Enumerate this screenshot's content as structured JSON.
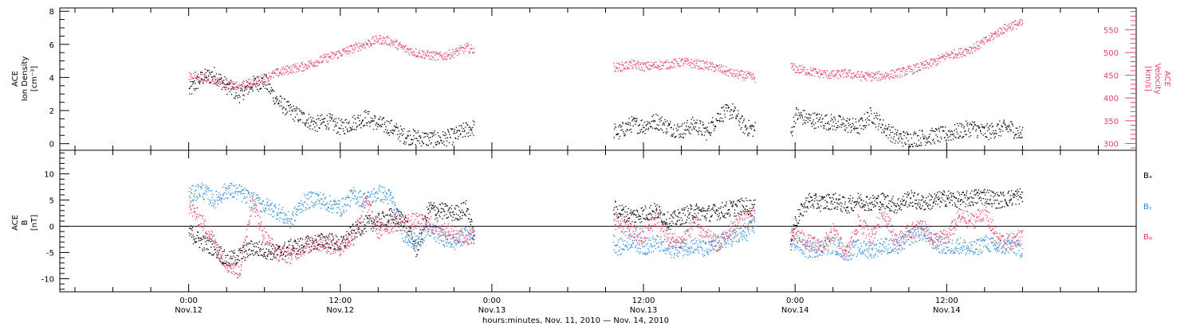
{
  "chart_data": [
    {
      "type": "scatter",
      "panel": "top",
      "left_ylabel_lines": [
        "ACE",
        "Ion Density",
        "[cm⁻³]"
      ],
      "right_ylabel_lines": [
        "ACE",
        "Velocity",
        "[km/s]"
      ],
      "left_ylim": [
        -0.4,
        8.2
      ],
      "right_ylim": [
        285,
        598
      ],
      "left_yticks": [
        "0",
        "2",
        "4",
        "6",
        "8"
      ],
      "right_yticks": [
        "300",
        "350",
        "400",
        "450",
        "500",
        "550"
      ],
      "grid": false,
      "series": [
        {
          "name": "Ion Density",
          "axis": "left",
          "color": "#000000",
          "gaps": [
            [
              22.6,
              33.6
            ],
            [
              44.8,
              47.6
            ]
          ],
          "x": [
            0,
            1,
            2,
            3,
            4,
            5,
            6,
            7,
            8,
            9,
            10,
            11,
            12,
            13,
            14,
            15,
            16,
            17,
            18,
            19,
            20,
            21,
            22,
            22.6,
            33.6,
            34,
            35,
            36,
            37,
            38,
            39,
            40,
            41,
            42,
            43,
            44,
            44.8,
            47.6,
            48,
            49,
            50,
            51,
            52,
            53,
            54,
            55,
            56,
            57,
            58,
            59,
            60,
            61,
            62,
            63,
            64,
            65,
            66
          ],
          "y": [
            3.2,
            4.0,
            4.2,
            3.5,
            3.0,
            3.6,
            3.8,
            2.6,
            2.0,
            1.6,
            1.2,
            1.4,
            1.0,
            1.3,
            1.6,
            1.2,
            1.0,
            0.5,
            0.4,
            0.3,
            0.3,
            0.5,
            0.9,
            1.0,
            0.8,
            0.7,
            1.2,
            1.1,
            1.4,
            1.0,
            0.8,
            1.2,
            0.7,
            1.8,
            2.0,
            1.0,
            0.9,
            0.5,
            1.8,
            1.5,
            1.4,
            1.3,
            1.2,
            1.0,
            1.8,
            1.0,
            0.4,
            0.3,
            0.4,
            0.5,
            0.6,
            0.8,
            1.0,
            0.7,
            0.9,
            1.0,
            0.5
          ]
        },
        {
          "name": "Velocity",
          "axis": "right",
          "color": "#e8426c",
          "gaps": [
            [
              22.6,
              33.6
            ],
            [
              44.8,
              47.6
            ]
          ],
          "x": [
            0,
            1,
            2,
            3,
            4,
            5,
            6,
            7,
            8,
            9,
            10,
            11,
            12,
            13,
            14,
            15,
            16,
            17,
            18,
            19,
            20,
            21,
            22,
            22.6,
            33.6,
            34,
            35,
            36,
            37,
            38,
            39,
            40,
            41,
            42,
            43,
            44,
            44.8,
            47.6,
            48,
            49,
            50,
            51,
            52,
            53,
            54,
            55,
            56,
            57,
            58,
            59,
            60,
            61,
            62,
            63,
            64,
            65,
            66
          ],
          "y": [
            452,
            445,
            440,
            430,
            425,
            436,
            445,
            456,
            465,
            470,
            480,
            490,
            500,
            510,
            520,
            530,
            525,
            510,
            500,
            495,
            492,
            500,
            512,
            505,
            470,
            468,
            475,
            470,
            472,
            475,
            480,
            476,
            472,
            465,
            455,
            450,
            445,
            470,
            465,
            460,
            455,
            452,
            455,
            450,
            448,
            450,
            455,
            462,
            470,
            480,
            495,
            500,
            510,
            525,
            545,
            560,
            565
          ]
        }
      ]
    },
    {
      "type": "scatter",
      "panel": "bottom",
      "ylabel_lines": [
        "ACE",
        "B",
        "[nT]"
      ],
      "ylim": [
        -12.5,
        14.5
      ],
      "yticks": [
        "-10",
        "-5",
        "0",
        "5",
        "10"
      ],
      "grid": false,
      "zero_line": true,
      "series": [
        {
          "name": "Bx",
          "color": "#000000",
          "gaps": [
            [
              22.6,
              33.6
            ],
            [
              44.8,
              47.6
            ]
          ],
          "x": [
            0,
            1,
            2,
            3,
            4,
            5,
            6,
            7,
            8,
            9,
            10,
            11,
            12,
            13,
            14,
            15,
            16,
            17,
            18,
            19,
            20,
            21,
            22,
            22.6,
            33.6,
            34,
            35,
            36,
            37,
            38,
            39,
            40,
            41,
            42,
            43,
            44,
            44.8,
            47.6,
            48,
            49,
            50,
            51,
            52,
            53,
            54,
            55,
            56,
            57,
            58,
            59,
            60,
            61,
            62,
            63,
            64,
            65,
            66
          ],
          "y": [
            -1.0,
            -3.0,
            -4.0,
            -6.5,
            -5.5,
            -4.0,
            -4.5,
            -5.0,
            -4.0,
            -3.5,
            -3.0,
            -2.5,
            -3.5,
            -1.0,
            0.5,
            1.0,
            2.0,
            1.5,
            -4.5,
            3.5,
            3.0,
            2.5,
            3.5,
            -2.5,
            3.5,
            3.0,
            2.0,
            2.5,
            3.0,
            1.0,
            2.0,
            3.0,
            2.5,
            3.0,
            3.5,
            4.0,
            3.5,
            -2.0,
            1.0,
            5.0,
            4.5,
            5.0,
            4.0,
            5.0,
            4.5,
            5.0,
            4.0,
            5.5,
            4.5,
            5.0,
            5.5,
            5.0,
            5.5,
            6.0,
            5.0,
            5.5,
            6.0
          ]
        },
        {
          "name": "By",
          "color": "#2a8be0",
          "gaps": [
            [
              22.6,
              33.6
            ],
            [
              44.8,
              47.6
            ]
          ],
          "x": [
            0,
            1,
            2,
            3,
            4,
            5,
            6,
            7,
            8,
            9,
            10,
            11,
            12,
            13,
            14,
            15,
            16,
            17,
            18,
            19,
            20,
            21,
            22,
            22.6,
            33.6,
            34,
            35,
            36,
            37,
            38,
            39,
            40,
            41,
            42,
            43,
            44,
            44.8,
            47.6,
            48,
            49,
            50,
            51,
            52,
            53,
            54,
            55,
            56,
            57,
            58,
            59,
            60,
            61,
            62,
            63,
            64,
            65,
            66
          ],
          "y": [
            6.0,
            7.0,
            5.0,
            7.0,
            6.5,
            5.0,
            4.0,
            3.0,
            1.0,
            4.5,
            5.5,
            4.5,
            3.5,
            6.0,
            5.0,
            6.5,
            5.5,
            -1.5,
            -3.0,
            -0.5,
            -2.0,
            -3.0,
            -1.5,
            -2.0,
            -3.0,
            -4.0,
            -2.5,
            -4.0,
            -3.0,
            -4.5,
            -4.0,
            -3.5,
            -4.5,
            -3.0,
            -2.0,
            -1.5,
            0.5,
            -3.5,
            -3.0,
            -4.5,
            -4.0,
            -3.5,
            -5.0,
            -4.0,
            -4.5,
            -3.5,
            -4.0,
            -2.0,
            -1.0,
            -3.0,
            -4.0,
            -3.5,
            -4.5,
            -3.0,
            -4.0,
            -3.5,
            -4.5
          ]
        },
        {
          "name": "Bz",
          "color": "#e8426c",
          "gaps": [
            [
              22.6,
              33.6
            ],
            [
              44.8,
              47.6
            ]
          ],
          "x": [
            0,
            1,
            2,
            3,
            4,
            5,
            6,
            7,
            8,
            9,
            10,
            11,
            12,
            13,
            14,
            15,
            16,
            17,
            18,
            19,
            20,
            21,
            22,
            22.6,
            33.6,
            34,
            35,
            36,
            37,
            38,
            39,
            40,
            41,
            42,
            43,
            44,
            44.8,
            47.6,
            48,
            49,
            50,
            51,
            52,
            53,
            54,
            55,
            56,
            57,
            58,
            59,
            60,
            61,
            62,
            63,
            64,
            65,
            66
          ],
          "y": [
            4.0,
            1.0,
            -3.0,
            -7.0,
            -8.5,
            5.0,
            -2.0,
            -5.0,
            -5.5,
            -4.0,
            -3.0,
            -3.5,
            -4.0,
            -2.0,
            5.0,
            -1.0,
            0.5,
            1.0,
            1.0,
            0.5,
            -0.5,
            -1.5,
            -2.0,
            -1.5,
            0.0,
            1.0,
            -1.0,
            -2.0,
            2.0,
            -2.5,
            -3.0,
            1.0,
            -2.0,
            -3.5,
            0.0,
            2.0,
            2.0,
            -2.0,
            -1.5,
            -3.0,
            -4.0,
            -1.0,
            -5.5,
            1.0,
            -2.0,
            3.0,
            -3.0,
            -1.0,
            0.0,
            -2.5,
            -2.0,
            2.0,
            1.0,
            3.0,
            -2.5,
            -3.0,
            -1.5
          ]
        }
      ],
      "legend_lines": [
        "Bₓ",
        "Bᵧ",
        "Bᵩ"
      ],
      "legend_placement": "right"
    }
  ],
  "x_axis": {
    "xlim": [
      -10.2,
      75
    ],
    "tick_hours": [
      0,
      12,
      24,
      36,
      48,
      60
    ],
    "tick_time_labels": [
      "0:00",
      "12:00",
      "0:00",
      "12:00",
      "0:00",
      "12:00"
    ],
    "tick_date_labels": [
      "Nov.12",
      "Nov.12",
      "Nov.13",
      "Nov.13",
      "Nov.14",
      "Nov.14"
    ],
    "title": "hours:minutes, Nov. 11, 2010 — Nov. 14, 2010"
  }
}
